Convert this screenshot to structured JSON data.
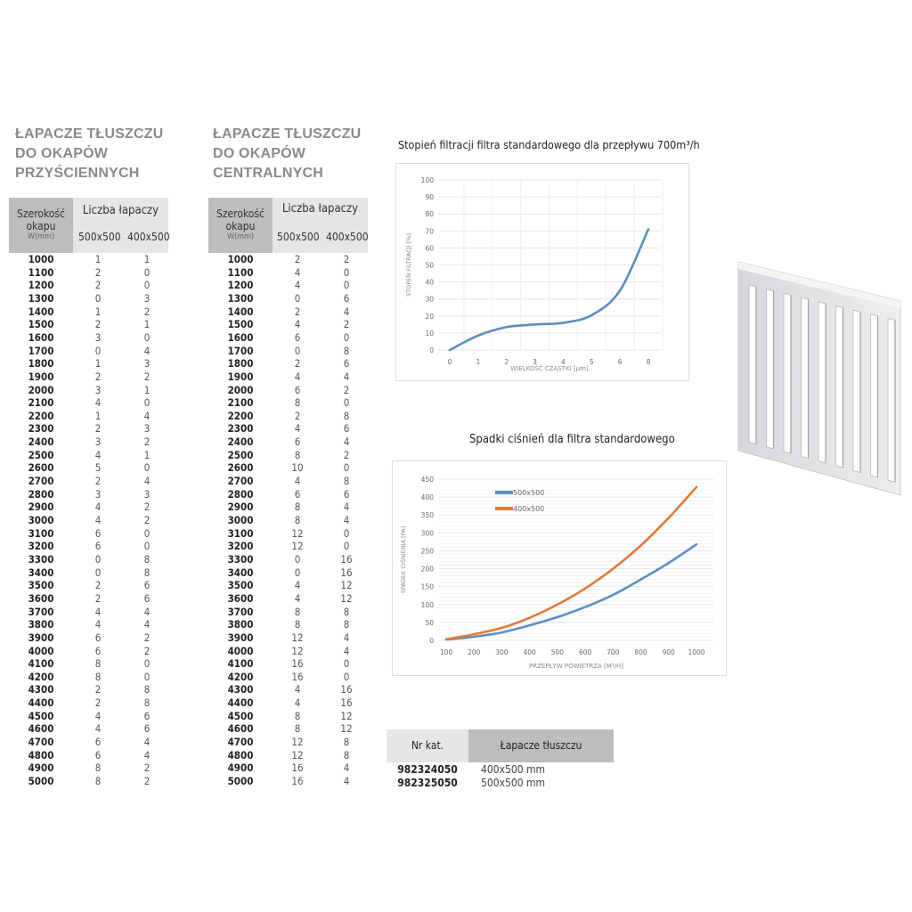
{
  "wall_table": {
    "title_lines": [
      "ŁAPACZE TŁUSZCZU",
      "DO OKAPÓW",
      "PRZYŚCIENNYCH"
    ],
    "header": {
      "width_label_1": "Szerokość",
      "width_label_2": "okapu",
      "width_unit": "W(mm)",
      "count_label": "Liczba łapaczy",
      "col_a": "500x500",
      "col_b": "400x500"
    },
    "rows": [
      [
        "1000",
        "1",
        "1"
      ],
      [
        "1100",
        "2",
        "0"
      ],
      [
        "1200",
        "2",
        "0"
      ],
      [
        "1300",
        "0",
        "3"
      ],
      [
        "1400",
        "1",
        "2"
      ],
      [
        "1500",
        "2",
        "1"
      ],
      [
        "1600",
        "3",
        "0"
      ],
      [
        "1700",
        "0",
        "4"
      ],
      [
        "1800",
        "1",
        "3"
      ],
      [
        "1900",
        "2",
        "2"
      ],
      [
        "2000",
        "3",
        "1"
      ],
      [
        "2100",
        "4",
        "0"
      ],
      [
        "2200",
        "1",
        "4"
      ],
      [
        "2300",
        "2",
        "3"
      ],
      [
        "2400",
        "3",
        "2"
      ],
      [
        "2500",
        "4",
        "1"
      ],
      [
        "2600",
        "5",
        "0"
      ],
      [
        "2700",
        "2",
        "4"
      ],
      [
        "2800",
        "3",
        "3"
      ],
      [
        "2900",
        "4",
        "2"
      ],
      [
        "3000",
        "4",
        "2"
      ],
      [
        "3100",
        "6",
        "0"
      ],
      [
        "3200",
        "6",
        "0"
      ],
      [
        "3300",
        "0",
        "8"
      ],
      [
        "3400",
        "0",
        "8"
      ],
      [
        "3500",
        "2",
        "6"
      ],
      [
        "3600",
        "2",
        "6"
      ],
      [
        "3700",
        "4",
        "4"
      ],
      [
        "3800",
        "4",
        "4"
      ],
      [
        "3900",
        "6",
        "2"
      ],
      [
        "4000",
        "6",
        "2"
      ],
      [
        "4100",
        "8",
        "0"
      ],
      [
        "4200",
        "8",
        "0"
      ],
      [
        "4300",
        "2",
        "8"
      ],
      [
        "4400",
        "2",
        "8"
      ],
      [
        "4500",
        "4",
        "6"
      ],
      [
        "4600",
        "4",
        "6"
      ],
      [
        "4700",
        "6",
        "4"
      ],
      [
        "4800",
        "6",
        "4"
      ],
      [
        "4900",
        "8",
        "2"
      ],
      [
        "5000",
        "8",
        "2"
      ]
    ]
  },
  "central_table": {
    "title_lines": [
      "ŁAPACZE TŁUSZCZU",
      "DO OKAPÓW",
      "CENTRALNYCH"
    ],
    "header": {
      "width_label_1": "Szerokość",
      "width_label_2": "okapu",
      "width_unit": "W(mm)",
      "count_label": "Liczba łapaczy",
      "col_a": "500x500",
      "col_b": "400x500"
    },
    "rows": [
      [
        "1000",
        "2",
        "2"
      ],
      [
        "1100",
        "4",
        "0"
      ],
      [
        "1200",
        "4",
        "0"
      ],
      [
        "1300",
        "0",
        "6"
      ],
      [
        "1400",
        "2",
        "4"
      ],
      [
        "1500",
        "4",
        "2"
      ],
      [
        "1600",
        "6",
        "0"
      ],
      [
        "1700",
        "0",
        "8"
      ],
      [
        "1800",
        "2",
        "6"
      ],
      [
        "1900",
        "4",
        "4"
      ],
      [
        "2000",
        "6",
        "2"
      ],
      [
        "2100",
        "8",
        "0"
      ],
      [
        "2200",
        "2",
        "8"
      ],
      [
        "2300",
        "4",
        "6"
      ],
      [
        "2400",
        "6",
        "4"
      ],
      [
        "2500",
        "8",
        "2"
      ],
      [
        "2600",
        "10",
        "0"
      ],
      [
        "2700",
        "4",
        "8"
      ],
      [
        "2800",
        "6",
        "6"
      ],
      [
        "2900",
        "8",
        "4"
      ],
      [
        "3000",
        "8",
        "4"
      ],
      [
        "3100",
        "12",
        "0"
      ],
      [
        "3200",
        "12",
        "0"
      ],
      [
        "3300",
        "0",
        "16"
      ],
      [
        "3400",
        "0",
        "16"
      ],
      [
        "3500",
        "4",
        "12"
      ],
      [
        "3600",
        "4",
        "12"
      ],
      [
        "3700",
        "8",
        "8"
      ],
      [
        "3800",
        "8",
        "8"
      ],
      [
        "3900",
        "12",
        "4"
      ],
      [
        "4000",
        "12",
        "4"
      ],
      [
        "4100",
        "16",
        "0"
      ],
      [
        "4200",
        "16",
        "0"
      ],
      [
        "4300",
        "4",
        "16"
      ],
      [
        "4400",
        "4",
        "16"
      ],
      [
        "4500",
        "8",
        "12"
      ],
      [
        "4600",
        "8",
        "12"
      ],
      [
        "4700",
        "12",
        "8"
      ],
      [
        "4800",
        "12",
        "8"
      ],
      [
        "4900",
        "16",
        "4"
      ],
      [
        "5000",
        "16",
        "4"
      ]
    ]
  },
  "chart_data": [
    {
      "type": "line",
      "title": "Stopień filtracji filtra standardowego dla przepływu 700m³/h",
      "xlabel": "WIELKOŚĆ CZĄSTKI [µm]",
      "ylabel": "STOPEŃ FILTRACJI [%]",
      "categories": [
        "0",
        "1",
        "2",
        "3",
        "4",
        "5",
        "6",
        "8"
      ],
      "ylim": [
        0,
        100
      ],
      "yticks": [
        0,
        10,
        20,
        30,
        40,
        50,
        60,
        70,
        80,
        90,
        100
      ],
      "grid": true,
      "series": [
        {
          "values": [
            0,
            8.5,
            13.5,
            15,
            16,
            20.5,
            35,
            71
          ],
          "color": "#5b8ec4"
        }
      ]
    },
    {
      "type": "line",
      "title": "Spadki ciśnień dla filtra standardowego",
      "xlabel": "PRZEPŁYW POWIETRZA [M³/H]",
      "ylabel": "SPADEK CIŚNIENIA [PA]",
      "categories": [
        "100",
        "200",
        "300",
        "400",
        "500",
        "600",
        "700",
        "800",
        "900",
        "1000"
      ],
      "ylim": [
        0,
        450
      ],
      "yticks": [
        0,
        50,
        100,
        150,
        200,
        250,
        300,
        350,
        400,
        450
      ],
      "grid": true,
      "legend": "top-left",
      "series": [
        {
          "name": "500x500",
          "values": [
            2,
            10,
            22,
            42,
            65,
            93,
            127,
            170,
            216,
            268
          ],
          "color": "#5b8ec4"
        },
        {
          "name": "400x500",
          "values": [
            3,
            17,
            35,
            63,
            100,
            145,
            200,
            265,
            342,
            428
          ],
          "color": "#e07b39"
        }
      ]
    }
  ],
  "catalog": {
    "header": {
      "col_a": "Nr kat.",
      "col_b": "Łapacze tłuszczu"
    },
    "rows": [
      [
        "982324050",
        "400x500 mm"
      ],
      [
        "982325050",
        "500x500 mm"
      ]
    ]
  }
}
